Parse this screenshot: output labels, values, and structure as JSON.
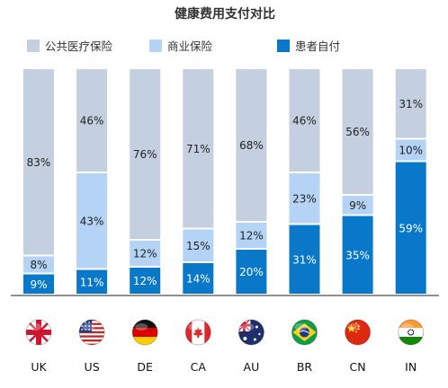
{
  "chart_data": {
    "type": "bar",
    "stacked": true,
    "title": "健康费用支付对比",
    "categories": [
      "UK",
      "US",
      "DE",
      "CA",
      "AU",
      "BR",
      "CN",
      "IN"
    ],
    "series": [
      {
        "name": "患者自付",
        "color": "#0a78c8",
        "label_color": "#ffffff",
        "values": [
          9,
          11,
          12,
          14,
          20,
          31,
          35,
          59
        ]
      },
      {
        "name": "商业保险",
        "color": "#b4d3f5",
        "label_color": "#222222",
        "values": [
          8,
          43,
          12,
          15,
          12,
          23,
          9,
          10
        ]
      },
      {
        "name": "公共医疗保险",
        "color": "#c4cfe0",
        "label_color": "#222222",
        "values": [
          83,
          46,
          76,
          71,
          68,
          46,
          56,
          31
        ]
      }
    ],
    "legend_order": [
      "公共医疗保险",
      "商业保险",
      "患者自付"
    ],
    "ylim": [
      0,
      100
    ],
    "grid": false,
    "legend_position": "top",
    "flag_icons": [
      "uk-flag-icon",
      "us-flag-icon",
      "germany-flag-icon",
      "canada-flag-icon",
      "australia-flag-icon",
      "brazil-flag-icon",
      "china-flag-icon",
      "india-flag-icon"
    ]
  }
}
